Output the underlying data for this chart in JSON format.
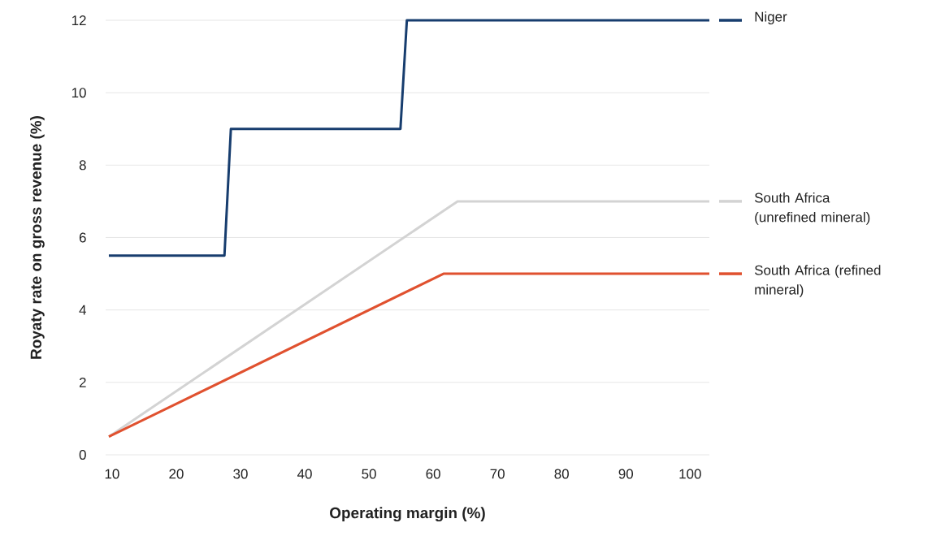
{
  "chart_data": {
    "type": "line",
    "xlabel": "Operating margin (%)",
    "ylabel": "Royaty rate on gross revenue (%)",
    "xlim": [
      9,
      103
    ],
    "ylim": [
      0,
      12
    ],
    "xticks": [
      10,
      20,
      30,
      40,
      50,
      60,
      70,
      80,
      90,
      100
    ],
    "yticks": [
      0,
      2,
      4,
      6,
      8,
      10,
      12
    ],
    "grid": "y",
    "legend": "right",
    "marker": "none",
    "line_style": "solid",
    "series": [
      {
        "name": "Niger",
        "color": "#173d6e",
        "x": [
          9.5,
          27.5,
          28.5,
          54.9,
          55.9,
          103
        ],
        "values": [
          5.5,
          5.5,
          9,
          9,
          12,
          12
        ]
      },
      {
        "name": "South Africa (unrefined mineral)",
        "color": "#d3d3d3",
        "x": [
          9.5,
          63.8,
          103
        ],
        "values": [
          0.5,
          7,
          7
        ]
      },
      {
        "name": "South Africa (refined mineral)",
        "color": "#e0512f",
        "x": [
          9.5,
          61.6,
          103
        ],
        "values": [
          0.5,
          5,
          5
        ]
      }
    ]
  }
}
